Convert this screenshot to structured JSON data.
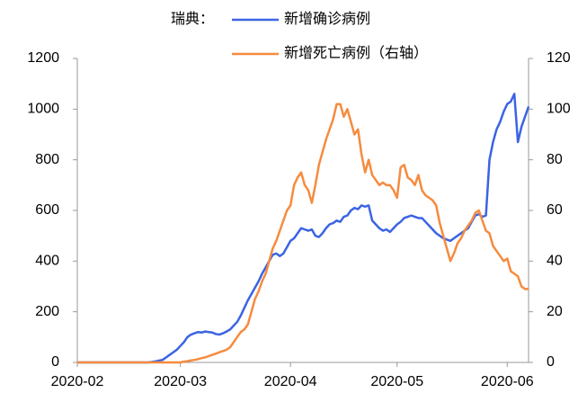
{
  "chart_data": {
    "type": "line",
    "legend_title": "瑞典：",
    "legend": "top",
    "categories": [
      "2020-02",
      null,
      null,
      null,
      null,
      null,
      null,
      null,
      null,
      null,
      null,
      null,
      null,
      null,
      null,
      null,
      null,
      null,
      null,
      null,
      null,
      null,
      null,
      null,
      null,
      null,
      null,
      null,
      null,
      "2020-03",
      null,
      null,
      null,
      null,
      null,
      null,
      null,
      null,
      null,
      null,
      null,
      null,
      null,
      null,
      null,
      null,
      null,
      null,
      null,
      null,
      null,
      null,
      null,
      null,
      null,
      null,
      null,
      null,
      null,
      null,
      "2020-04",
      null,
      null,
      null,
      null,
      null,
      null,
      null,
      null,
      null,
      null,
      null,
      null,
      null,
      null,
      null,
      null,
      null,
      null,
      null,
      null,
      null,
      null,
      null,
      null,
      null,
      null,
      null,
      null,
      null,
      "2020-05",
      null,
      null,
      null,
      null,
      null,
      null,
      null,
      null,
      null,
      null,
      null,
      null,
      null,
      null,
      null,
      null,
      null,
      null,
      null,
      null,
      null,
      null,
      null,
      null,
      null,
      null,
      null,
      null,
      null,
      null,
      "2020-06",
      null,
      null,
      null,
      null,
      null,
      null
    ],
    "series": [
      {
        "name": "新增确诊病例",
        "color": "#3b64e3",
        "axis": "y",
        "values": [
          0,
          0,
          0,
          0,
          0,
          0,
          0,
          0,
          0,
          0,
          0,
          0,
          0,
          0,
          0,
          0,
          0,
          0,
          0,
          0,
          0,
          2,
          4,
          7,
          10,
          20,
          30,
          40,
          50,
          65,
          80,
          100,
          110,
          115,
          120,
          118,
          122,
          120,
          118,
          112,
          110,
          115,
          122,
          130,
          145,
          160,
          185,
          215,
          245,
          270,
          295,
          320,
          350,
          375,
          400,
          425,
          430,
          420,
          430,
          455,
          480,
          490,
          510,
          530,
          525,
          520,
          525,
          500,
          495,
          510,
          530,
          545,
          550,
          560,
          555,
          575,
          580,
          600,
          610,
          605,
          620,
          615,
          620,
          560,
          545,
          530,
          520,
          525,
          515,
          530,
          545,
          555,
          570,
          575,
          580,
          575,
          570,
          570,
          555,
          540,
          525,
          510,
          500,
          490,
          485,
          480,
          490,
          500,
          510,
          520,
          530,
          555,
          580,
          585,
          575,
          580,
          800,
          870,
          920,
          950,
          990,
          1020,
          1030,
          1060,
          870,
          930,
          970,
          1010
        ]
      },
      {
        "name": "新增死亡病例（右轴）",
        "color": "#f58b3f",
        "axis": "y2",
        "values": [
          0,
          0,
          0,
          0,
          0,
          0,
          0,
          0,
          0,
          0,
          0,
          0,
          0,
          0,
          0,
          0,
          0,
          0,
          0,
          0,
          0,
          0,
          0,
          0,
          0,
          0,
          0,
          0,
          0,
          0,
          0.3,
          0.5,
          0.8,
          1,
          1.3,
          1.7,
          2,
          2.5,
          3,
          3.5,
          4,
          4.5,
          5,
          6,
          8,
          10,
          12,
          13,
          15,
          20,
          25,
          28,
          32,
          35,
          40,
          45,
          48,
          52,
          56,
          60,
          62,
          70,
          73,
          75,
          70,
          68,
          63,
          70,
          78,
          83,
          88,
          92,
          96,
          102,
          102,
          97,
          100,
          95,
          90,
          92,
          82,
          75,
          80,
          74,
          72,
          70,
          71,
          70,
          70,
          68,
          65,
          77,
          78,
          73,
          72,
          70,
          74,
          68,
          66,
          65,
          64,
          62,
          55,
          50,
          45,
          40,
          43,
          47,
          49,
          52,
          54,
          56,
          59,
          60,
          56,
          52,
          51,
          46,
          44,
          42,
          40,
          41,
          36,
          35,
          34,
          30,
          29,
          29
        ]
      }
    ],
    "ylim": [
      0,
      1200
    ],
    "yticks": [
      0,
      200,
      400,
      600,
      800,
      1000,
      1200
    ],
    "y2lim": [
      0,
      120
    ],
    "y2ticks": [
      0,
      20,
      40,
      60,
      80,
      100,
      120
    ],
    "grid": false
  }
}
